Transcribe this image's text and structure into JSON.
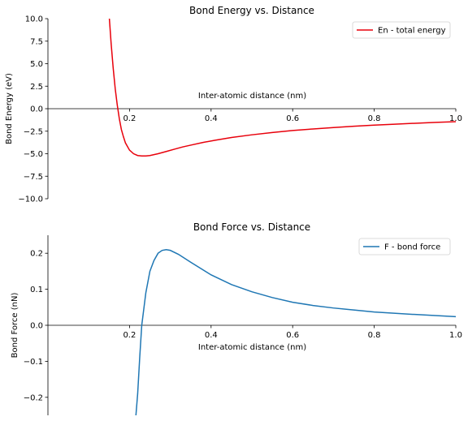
{
  "chart_data": [
    {
      "type": "line",
      "title": "Bond Energy vs. Distance",
      "xlabel": "Inter-atomic distance (nm)",
      "ylabel": "Bond Energy (eV)",
      "xlim": [
        0.0,
        1.0
      ],
      "ylim": [
        -10.0,
        10.0
      ],
      "xticks": [
        0.2,
        0.4,
        0.6,
        0.8,
        1.0
      ],
      "xtick_labels": [
        "0.2",
        "0.4",
        "0.6",
        "0.8",
        "1.0"
      ],
      "yticks": [
        -10.0,
        -7.5,
        -5.0,
        -2.5,
        0.0,
        2.5,
        5.0,
        7.5,
        10.0
      ],
      "ytick_labels": [
        "−10.0",
        "−7.5",
        "−5.0",
        "−2.5",
        "0.0",
        "2.5",
        "5.0",
        "7.5",
        "10.0"
      ],
      "grid": false,
      "legend_position": "top-right",
      "series": [
        {
          "name": "En - total energy",
          "color": "#e8000b",
          "x": [
            0.145,
            0.15,
            0.155,
            0.16,
            0.165,
            0.17,
            0.175,
            0.18,
            0.185,
            0.19,
            0.2,
            0.21,
            0.22,
            0.23,
            0.24,
            0.25,
            0.27,
            0.29,
            0.31,
            0.33,
            0.35,
            0.38,
            0.41,
            0.45,
            0.5,
            0.55,
            0.6,
            0.65,
            0.7,
            0.75,
            0.8,
            0.85,
            0.9,
            0.95,
            1.0
          ],
          "y": [
            13.9,
            10.4,
            7.2,
            4.5,
            2.2,
            0.4,
            -1.1,
            -2.3,
            -3.1,
            -3.8,
            -4.6,
            -5.0,
            -5.2,
            -5.25,
            -5.25,
            -5.2,
            -5.0,
            -4.75,
            -4.5,
            -4.25,
            -4.05,
            -3.75,
            -3.5,
            -3.2,
            -2.9,
            -2.65,
            -2.42,
            -2.25,
            -2.1,
            -1.95,
            -1.82,
            -1.72,
            -1.62,
            -1.52,
            -1.44
          ]
        }
      ]
    },
    {
      "type": "line",
      "title": "Bond Force vs. Distance",
      "xlabel": "Inter-atomic distance (nm)",
      "ylabel": "Bond Force (nN)",
      "xlim": [
        0.0,
        1.0
      ],
      "ylim": [
        -0.25,
        0.25
      ],
      "xticks": [
        0.2,
        0.4,
        0.6,
        0.8,
        1.0
      ],
      "xtick_labels": [
        "0.2",
        "0.4",
        "0.6",
        "0.8",
        "1.0"
      ],
      "yticks": [
        -0.2,
        -0.1,
        0.0,
        0.1,
        0.2
      ],
      "ytick_labels": [
        "−0.2",
        "−0.1",
        "0.0",
        "0.1",
        "0.2"
      ],
      "grid": false,
      "legend_position": "top-right",
      "series": [
        {
          "name": "F - bond force",
          "color": "#1f77b4",
          "x": [
            0.215,
            0.22,
            0.225,
            0.23,
            0.24,
            0.25,
            0.26,
            0.27,
            0.28,
            0.29,
            0.3,
            0.32,
            0.35,
            0.4,
            0.45,
            0.5,
            0.55,
            0.6,
            0.65,
            0.7,
            0.8,
            0.9,
            1.0
          ],
          "y": [
            -0.26,
            -0.19,
            -0.09,
            0.0,
            0.09,
            0.15,
            0.18,
            0.2,
            0.208,
            0.21,
            0.208,
            0.197,
            0.175,
            0.14,
            0.113,
            0.093,
            0.077,
            0.064,
            0.055,
            0.048,
            0.037,
            0.03,
            0.024
          ]
        }
      ]
    }
  ]
}
